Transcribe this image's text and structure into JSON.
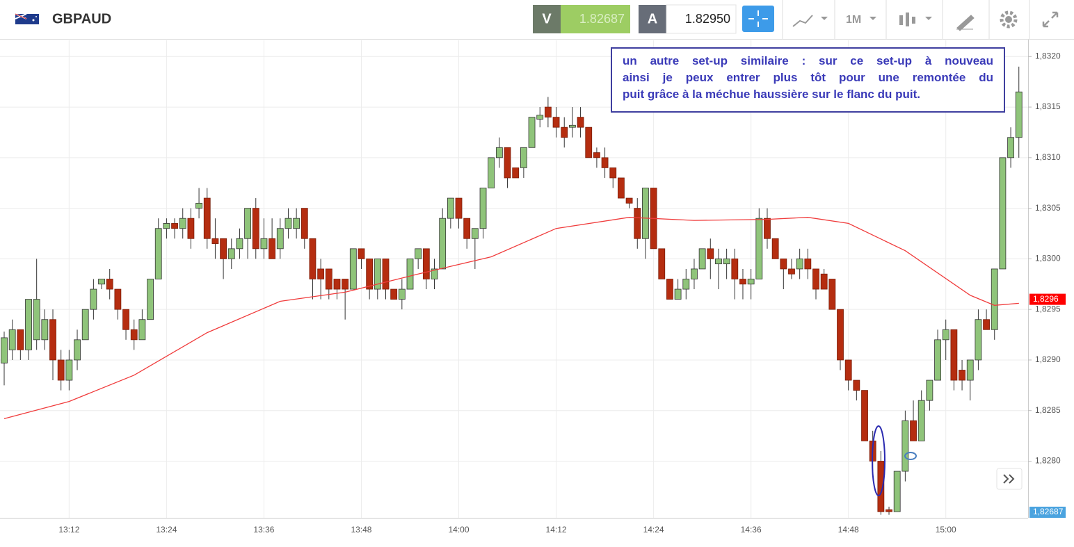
{
  "header": {
    "symbol": "GBPAUD",
    "sell_label": "V",
    "sell_price": "1.82687",
    "buy_label": "A",
    "buy_price": "1.82950",
    "timeframe": "1M"
  },
  "chart_data": {
    "type": "candlestick",
    "annotation": [
      "un autre set-up similaire : sur ce set-up à nouveau",
      "ainsi je peux entrer plus tôt pour une remontée du",
      "puit grâce à la méchue haussière sur le flanc du puit."
    ],
    "categories": [
      null,
      null,
      null,
      null,
      null,
      null,
      null,
      null,
      "13:12",
      null,
      null,
      null,
      null,
      null,
      null,
      null,
      null,
      null,
      null,
      null,
      "13:24",
      null,
      null,
      null,
      null,
      null,
      null,
      null,
      null,
      null,
      null,
      null,
      "13:36",
      null,
      null,
      null,
      null,
      null,
      null,
      null,
      null,
      null,
      null,
      null,
      "13:48",
      null,
      null,
      null,
      null,
      null,
      null,
      null,
      null,
      null,
      null,
      null,
      "14:00",
      null,
      null,
      null,
      null,
      null,
      null,
      null,
      null,
      null,
      null,
      null,
      "14:12",
      null,
      null,
      null,
      null,
      null,
      null,
      null,
      null,
      null,
      null,
      null,
      "14:24",
      null,
      null,
      null,
      null,
      null,
      null,
      null,
      null,
      null,
      null,
      null,
      "14:36",
      null,
      null,
      null,
      null,
      null,
      null,
      null,
      null,
      null,
      null,
      null,
      "14:48",
      null,
      null,
      null,
      null,
      null,
      null,
      null,
      null,
      null,
      null,
      null,
      "15:00",
      null,
      null,
      null,
      null,
      null,
      null,
      null,
      null,
      null
    ],
    "open": [
      1.82897,
      1.8291,
      1.8293,
      1.8291,
      1.8292,
      1.8292,
      1.8294,
      1.829,
      1.8288,
      1.829,
      1.8292,
      1.8295,
      1.82975,
      1.8298,
      1.8297,
      1.8295,
      1.8293,
      1.8292,
      1.8294,
      1.8298,
      1.8303,
      1.83035,
      1.8303,
      1.8304,
      1.8305,
      1.8306,
      1.8302,
      1.8302,
      1.83,
      1.8301,
      1.8302,
      1.8305,
      1.8301,
      1.8302,
      1.8301,
      1.8303,
      1.8303,
      1.8305,
      1.8302,
      1.8299,
      1.8299,
      1.8298,
      1.8298,
      1.8297,
      1.8301,
      1.83,
      1.8297,
      1.83,
      1.8297,
      1.8296,
      1.8297,
      1.83,
      1.8301,
      1.8298,
      1.8299,
      1.8304,
      1.8306,
      1.8304,
      1.8302,
      1.8303,
      1.8307,
      1.831,
      1.8311,
      1.8309,
      1.8309,
      1.8311,
      1.83138,
      1.8315,
      1.8314,
      1.8313,
      1.8313,
      1.8314,
      1.8313,
      1.83105,
      1.831,
      1.8309,
      1.8308,
      1.8306,
      1.8305,
      1.8302,
      1.8307,
      1.8301,
      1.8298,
      1.8296,
      1.8297,
      1.8298,
      1.8299,
      1.8301,
      1.82995,
      1.82995,
      1.83,
      1.8298,
      1.82975,
      1.8298,
      1.8304,
      1.8302,
      1.83,
      1.8299,
      1.8299,
      1.83,
      1.8299,
      1.82985,
      1.8298,
      1.8295,
      1.829,
      1.8288,
      1.8287,
      1.8282,
      1.828,
      1.82752,
      1.8275,
      1.8279,
      1.8284,
      1.8282,
      1.8286,
      1.8288,
      1.8292,
      1.8293,
      1.8289,
      1.8288,
      1.829,
      1.8294,
      1.8293,
      1.8299,
      1.831,
      1.8312
    ],
    "high": [
      1.82928,
      1.8294,
      1.8293,
      1.8296,
      1.83,
      1.8295,
      1.8295,
      1.8291,
      1.8291,
      1.8293,
      1.8295,
      1.8298,
      1.8298,
      1.8299,
      1.8297,
      1.8295,
      1.8294,
      1.8295,
      1.8298,
      1.8304,
      1.8304,
      1.8304,
      1.8305,
      1.8305,
      1.8307,
      1.8307,
      1.8304,
      1.8302,
      1.8302,
      1.8303,
      1.8305,
      1.8306,
      1.8304,
      1.8304,
      1.8304,
      1.8305,
      1.8305,
      1.8305,
      1.8302,
      1.83,
      1.8299,
      1.8298,
      1.8298,
      1.8301,
      1.8301,
      1.83,
      1.83,
      1.83,
      1.8297,
      1.8298,
      1.83,
      1.8301,
      1.8301,
      1.83,
      1.8305,
      1.8306,
      1.8306,
      1.8304,
      1.8303,
      1.8307,
      1.831,
      1.8312,
      1.8311,
      1.8309,
      1.8311,
      1.8314,
      1.8315,
      1.8316,
      1.8315,
      1.8314,
      1.8315,
      1.8315,
      1.8313,
      1.8311,
      1.8311,
      1.8309,
      1.8308,
      1.8306,
      1.8306,
      1.8307,
      1.8307,
      1.8301,
      1.8298,
      1.8298,
      1.8299,
      1.83,
      1.8301,
      1.8302,
      1.8301,
      1.8301,
      1.8301,
      1.8299,
      1.8299,
      1.8305,
      1.8305,
      1.8302,
      1.83,
      1.83,
      1.8301,
      1.8301,
      1.8299,
      1.8299,
      1.8298,
      1.8295,
      1.829,
      1.8288,
      1.8287,
      1.8283,
      1.8281,
      1.82755,
      1.8279,
      1.8285,
      1.8286,
      1.8287,
      1.8288,
      1.8293,
      1.8294,
      1.8293,
      1.829,
      1.829,
      1.8295,
      1.8295,
      1.8299,
      1.831,
      1.8313,
      1.8319
    ],
    "low": [
      1.82875,
      1.829,
      1.829,
      1.829,
      1.8291,
      1.8291,
      1.8288,
      1.8287,
      1.8287,
      1.8289,
      1.8292,
      1.8294,
      1.8297,
      1.8296,
      1.8294,
      1.8292,
      1.8291,
      1.8292,
      1.8294,
      1.8298,
      1.8302,
      1.8302,
      1.8302,
      1.8301,
      1.8304,
      1.8301,
      1.83,
      1.8298,
      1.8299,
      1.83,
      1.83,
      1.83,
      1.83,
      1.83,
      1.83,
      1.8302,
      1.8302,
      1.8301,
      1.8296,
      1.8296,
      1.8296,
      1.8296,
      1.8294,
      1.8297,
      1.8299,
      1.8296,
      1.8296,
      1.8296,
      1.8296,
      1.8295,
      1.8297,
      1.8299,
      1.8297,
      1.8297,
      1.8299,
      1.8303,
      1.8303,
      1.8301,
      1.8299,
      1.8302,
      1.8307,
      1.8309,
      1.8307,
      1.8308,
      1.8308,
      1.8311,
      1.8313,
      1.8313,
      1.8312,
      1.8311,
      1.8312,
      1.8312,
      1.831,
      1.8309,
      1.8308,
      1.8307,
      1.8306,
      1.8305,
      1.8301,
      1.83,
      1.8301,
      1.8298,
      1.8296,
      1.8296,
      1.8296,
      1.8297,
      1.8299,
      1.8298,
      1.8297,
      1.8298,
      1.8296,
      1.8296,
      1.8296,
      1.8298,
      1.8301,
      1.83,
      1.8297,
      1.8298,
      1.8298,
      1.8298,
      1.8296,
      1.8297,
      1.8295,
      1.8289,
      1.8287,
      1.8286,
      1.8282,
      1.8279,
      1.82747,
      1.82747,
      1.8275,
      1.8278,
      1.8282,
      1.8282,
      1.8285,
      1.8288,
      1.829,
      1.8287,
      1.8287,
      1.8286,
      1.8289,
      1.8293,
      1.8292,
      1.8299,
      1.8309,
      1.831
    ],
    "close": [
      1.82922,
      1.8293,
      1.8291,
      1.8296,
      1.8296,
      1.8294,
      1.829,
      1.8288,
      1.829,
      1.8292,
      1.8295,
      1.8297,
      1.8298,
      1.8297,
      1.8295,
      1.8293,
      1.8292,
      1.8294,
      1.8298,
      1.8303,
      1.83035,
      1.8303,
      1.8304,
      1.8302,
      1.83055,
      1.8302,
      1.83015,
      1.83,
      1.8301,
      1.8302,
      1.8305,
      1.8301,
      1.8302,
      1.83,
      1.8303,
      1.8304,
      1.8304,
      1.8302,
      1.8298,
      1.8298,
      1.8297,
      1.8297,
      1.8297,
      1.8301,
      1.83,
      1.8297,
      1.83,
      1.8297,
      1.8296,
      1.8297,
      1.83,
      1.8301,
      1.8298,
      1.8299,
      1.8304,
      1.8306,
      1.8304,
      1.8302,
      1.8303,
      1.8307,
      1.831,
      1.8311,
      1.8308,
      1.8308,
      1.8311,
      1.8314,
      1.83142,
      1.8314,
      1.8313,
      1.8312,
      1.83132,
      1.8313,
      1.831,
      1.831,
      1.8309,
      1.8308,
      1.8306,
      1.83055,
      1.8302,
      1.8307,
      1.8301,
      1.8298,
      1.8296,
      1.8297,
      1.8298,
      1.8299,
      1.8301,
      1.83,
      1.83,
      1.83,
      1.8298,
      1.82975,
      1.8298,
      1.8304,
      1.8302,
      1.83,
      1.8299,
      1.82985,
      1.83,
      1.8299,
      1.8297,
      1.8297,
      1.8295,
      1.829,
      1.8288,
      1.8287,
      1.8282,
      1.828,
      1.8275,
      1.8275,
      1.8279,
      1.8284,
      1.8282,
      1.8286,
      1.8288,
      1.8292,
      1.8293,
      1.8288,
      1.8288,
      1.829,
      1.8294,
      1.8293,
      1.8299,
      1.831,
      1.8312,
      1.83165
    ],
    "up_color": "#8fc47a",
    "down_color": "#b52d10",
    "moving_average": {
      "color": "#f03c3c",
      "x": [
        0,
        8,
        16,
        25,
        34,
        42,
        51,
        60,
        68,
        77,
        85,
        94,
        99,
        104,
        111,
        119,
        122,
        125
      ],
      "values": [
        1.82842,
        1.82859,
        1.82885,
        1.82927,
        1.82958,
        1.82967,
        1.82985,
        1.83002,
        1.8303,
        1.83041,
        1.83038,
        1.83039,
        1.83041,
        1.83035,
        1.83008,
        1.82964,
        1.82954,
        1.82956
      ]
    },
    "price_tags": [
      {
        "value": 1.8296,
        "label": "1,8296",
        "color": "#ff0000"
      },
      {
        "value": 1.82687,
        "label": "1,82687",
        "color": "#4aa3df"
      }
    ],
    "ylim": [
      1.82744,
      1.83216
    ],
    "yticks": [
      {
        "value": 1.828,
        "label": "1,8280"
      },
      {
        "value": 1.8285,
        "label": "1,8285"
      },
      {
        "value": 1.829,
        "label": "1,8290"
      },
      {
        "value": 1.8295,
        "label": "1,8295"
      },
      {
        "value": 1.83,
        "label": "1,8300"
      },
      {
        "value": 1.8305,
        "label": "1,8305"
      },
      {
        "value": 1.831,
        "label": "1,8310"
      },
      {
        "value": 1.8315,
        "label": "1,8315"
      },
      {
        "value": 1.832,
        "label": "1,8320"
      }
    ],
    "grid": true
  }
}
